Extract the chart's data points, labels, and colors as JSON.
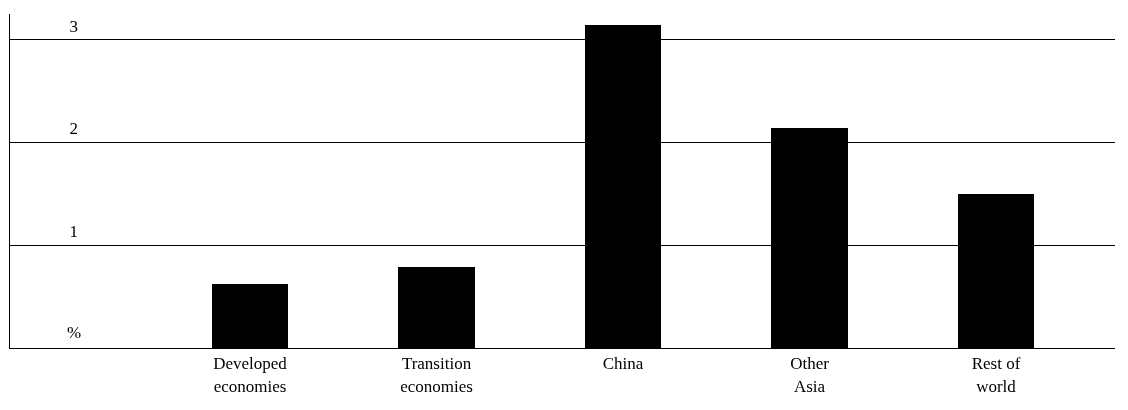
{
  "chart_data": {
    "type": "bar",
    "ylabel": "%",
    "categories": [
      "Developed\neconomies",
      "Transition\neconomies",
      "China",
      "Other\nAsia",
      "Rest of\nworld"
    ],
    "values": [
      0.62,
      0.79,
      3.14,
      2.14,
      1.5
    ],
    "color": "#000000",
    "ylim": [
      0,
      3.25
    ],
    "yticks": [
      1,
      2,
      3
    ],
    "grid": "y",
    "legend": false
  }
}
